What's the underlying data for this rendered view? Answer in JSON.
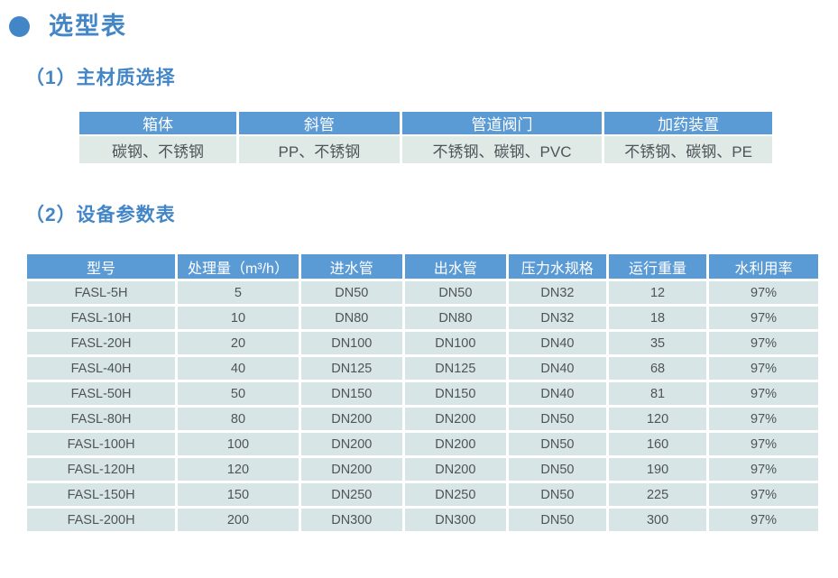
{
  "page_title": "选型表",
  "material_section": {
    "heading": "（1）主材质选择",
    "table": {
      "headers": [
        "箱体",
        "斜管",
        "管道阀门",
        "加药装置"
      ],
      "rows": [
        [
          "碳钢、不锈钢",
          "PP、不锈钢",
          "不锈钢、碳钢、PVC",
          "不锈钢、碳钢、PE"
        ]
      ]
    }
  },
  "params_section": {
    "heading": "（2）设备参数表",
    "table": {
      "headers": [
        "型号",
        "处理量（m³/h）",
        "进水管",
        "出水管",
        "压力水规格",
        "运行重量",
        "水利用率"
      ],
      "rows": [
        [
          "FASL-5H",
          "5",
          "DN50",
          "DN50",
          "DN32",
          "12",
          "97%"
        ],
        [
          "FASL-10H",
          "10",
          "DN80",
          "DN80",
          "DN32",
          "18",
          "97%"
        ],
        [
          "FASL-20H",
          "20",
          "DN100",
          "DN100",
          "DN40",
          "35",
          "97%"
        ],
        [
          "FASL-40H",
          "40",
          "DN125",
          "DN125",
          "DN40",
          "68",
          "97%"
        ],
        [
          "FASL-50H",
          "50",
          "DN150",
          "DN150",
          "DN40",
          "81",
          "97%"
        ],
        [
          "FASL-80H",
          "80",
          "DN200",
          "DN200",
          "DN50",
          "120",
          "97%"
        ],
        [
          "FASL-100H",
          "100",
          "DN200",
          "DN200",
          "DN50",
          "160",
          "97%"
        ],
        [
          "FASL-120H",
          "120",
          "DN200",
          "DN200",
          "DN50",
          "190",
          "97%"
        ],
        [
          "FASL-150H",
          "150",
          "DN250",
          "DN250",
          "DN50",
          "225",
          "97%"
        ],
        [
          "FASL-200H",
          "200",
          "DN300",
          "DN300",
          "DN50",
          "300",
          "97%"
        ]
      ]
    }
  },
  "colors": {
    "heading_blue": "#4386C8",
    "table_header_blue": "#5B9BD5",
    "row_bg_material": "#DFE9E5",
    "row_bg_params": "#D8E5E7",
    "body_text": "#4E5458"
  }
}
